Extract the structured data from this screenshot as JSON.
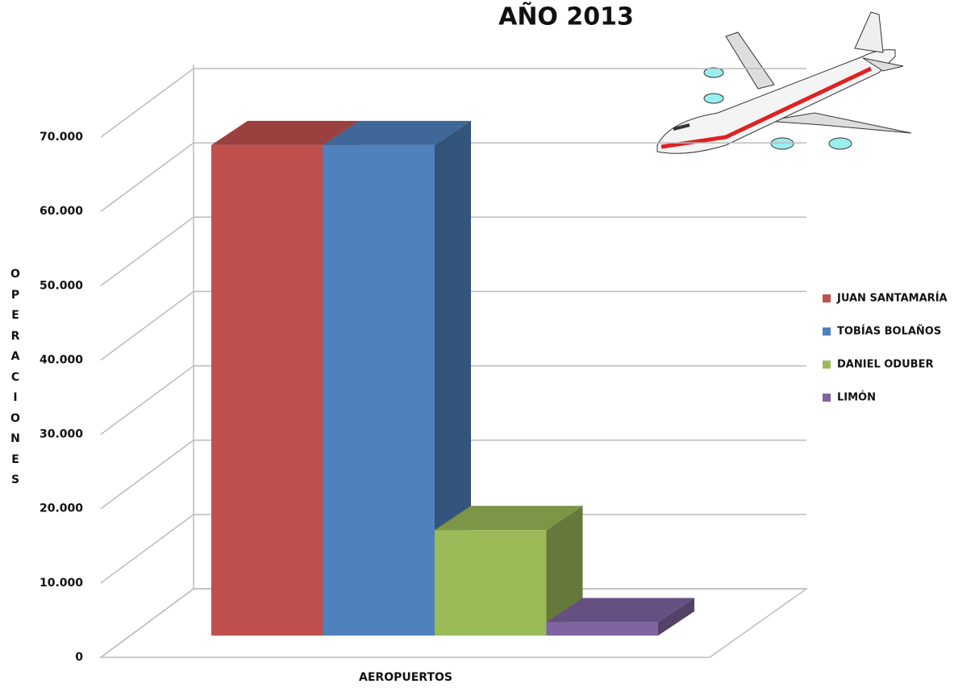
{
  "chart_data": {
    "type": "bar3d",
    "title": "AÑO 2013",
    "xlabel": "AEROPUERTOS",
    "ylabel": "OPERACIONES",
    "categories": [
      null
    ],
    "series": [
      {
        "name": "JUAN SANTAMARÍA",
        "color": "#c0504d",
        "values": [
          66000
        ]
      },
      {
        "name": "TOBÍAS BOLAÑOS",
        "color": "#4f81bd",
        "values": [
          66000
        ]
      },
      {
        "name": "DANIEL ODUBER",
        "color": "#9bbb59",
        "values": [
          14200
        ]
      },
      {
        "name": "LIMÓN",
        "color": "#8064a2",
        "values": [
          1800
        ]
      }
    ],
    "ylim": [
      0,
      70000
    ],
    "yticks": [
      0,
      {
        "value": 10000,
        "label": "10.000"
      },
      {
        "value": 20000,
        "label": "20.000"
      },
      {
        "value": 30000,
        "label": "30.000"
      },
      {
        "value": 40000,
        "label": "40.000"
      },
      {
        "value": 50000,
        "label": "50.000"
      },
      {
        "value": 60000,
        "label": "60.000"
      },
      {
        "value": 70000,
        "label": "70.000"
      }
    ],
    "grid": true,
    "legend": "right"
  }
}
